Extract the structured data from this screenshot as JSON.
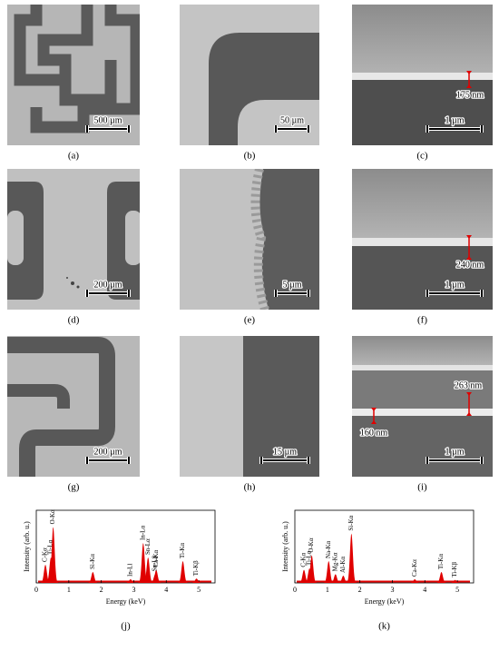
{
  "panels": [
    {
      "label": "(a)",
      "scale_bar": "500 µm"
    },
    {
      "label": "(b)",
      "scale_bar": "50 µm"
    },
    {
      "label": "(c)",
      "scale_bar": "1 µm",
      "annotations": [
        "175 nm"
      ]
    },
    {
      "label": "(d)",
      "scale_bar": "200 µm"
    },
    {
      "label": "(e)",
      "scale_bar": "5 µm"
    },
    {
      "label": "(f)",
      "scale_bar": "1 µm",
      "annotations": [
        "240 nm"
      ]
    },
    {
      "label": "(g)",
      "scale_bar": "200 µm"
    },
    {
      "label": "(h)",
      "scale_bar": "15 µm"
    },
    {
      "label": "(i)",
      "scale_bar": "1 µm",
      "annotations": [
        "263 nm",
        "160 nm"
      ]
    }
  ],
  "spectra": [
    {
      "label": "(j)",
      "x_label": "Energy (keV)",
      "y_label": "Intensity (arb. u.)",
      "xlim": [
        0,
        5.5
      ],
      "xticks": [
        0,
        1,
        2,
        3,
        4,
        5
      ],
      "ylim": [
        0,
        1
      ],
      "color": "#e00000",
      "peaks": [
        {
          "name": "C-Kα",
          "energy": 0.28,
          "height": 0.25
        },
        {
          "name": "Ti-Lα",
          "energy": 0.45,
          "height": 0.35
        },
        {
          "name": "O-Kα",
          "energy": 0.52,
          "height": 0.77
        },
        {
          "name": "Si-Kα",
          "energy": 1.74,
          "height": 0.15
        },
        {
          "name": "In-Ll",
          "energy": 2.9,
          "height": 0.05
        },
        {
          "name": "In-Lα",
          "energy": 3.29,
          "height": 0.55
        },
        {
          "name": "Sn-Lα",
          "energy": 3.44,
          "height": 0.35
        },
        {
          "name": "Ca-Kα",
          "energy": 3.69,
          "height": 0.18
        },
        {
          "name": "Sn-Lβ",
          "energy": 3.66,
          "height": 0.12
        },
        {
          "name": "Ti-Kα",
          "energy": 4.51,
          "height": 0.3
        },
        {
          "name": "Ti-Kβ",
          "energy": 4.93,
          "height": 0.06
        }
      ]
    },
    {
      "label": "(k)",
      "x_label": "Energy (keV)",
      "y_label": "Intensity (arb. u.)",
      "xlim": [
        0,
        5.5
      ],
      "xticks": [
        0,
        1,
        2,
        3,
        4,
        5
      ],
      "ylim": [
        0,
        1
      ],
      "color": "#e00000",
      "peaks": [
        {
          "name": "C-Kα",
          "energy": 0.28,
          "height": 0.18
        },
        {
          "name": "Ti-Lα",
          "energy": 0.45,
          "height": 0.2
        },
        {
          "name": "O-Kα",
          "energy": 0.52,
          "height": 0.38
        },
        {
          "name": "Na-Kα",
          "energy": 1.04,
          "height": 0.3
        },
        {
          "name": "Mg-Kα",
          "energy": 1.25,
          "height": 0.12
        },
        {
          "name": "Al-Kα",
          "energy": 1.49,
          "height": 0.1
        },
        {
          "name": "Si-Kα",
          "energy": 1.74,
          "height": 0.68
        },
        {
          "name": "Ca-Kα",
          "energy": 3.69,
          "height": 0.05
        },
        {
          "name": "Ti-Kα",
          "energy": 4.51,
          "height": 0.15
        },
        {
          "name": "Ti-Kβ",
          "energy": 4.93,
          "height": 0.04
        }
      ]
    }
  ]
}
